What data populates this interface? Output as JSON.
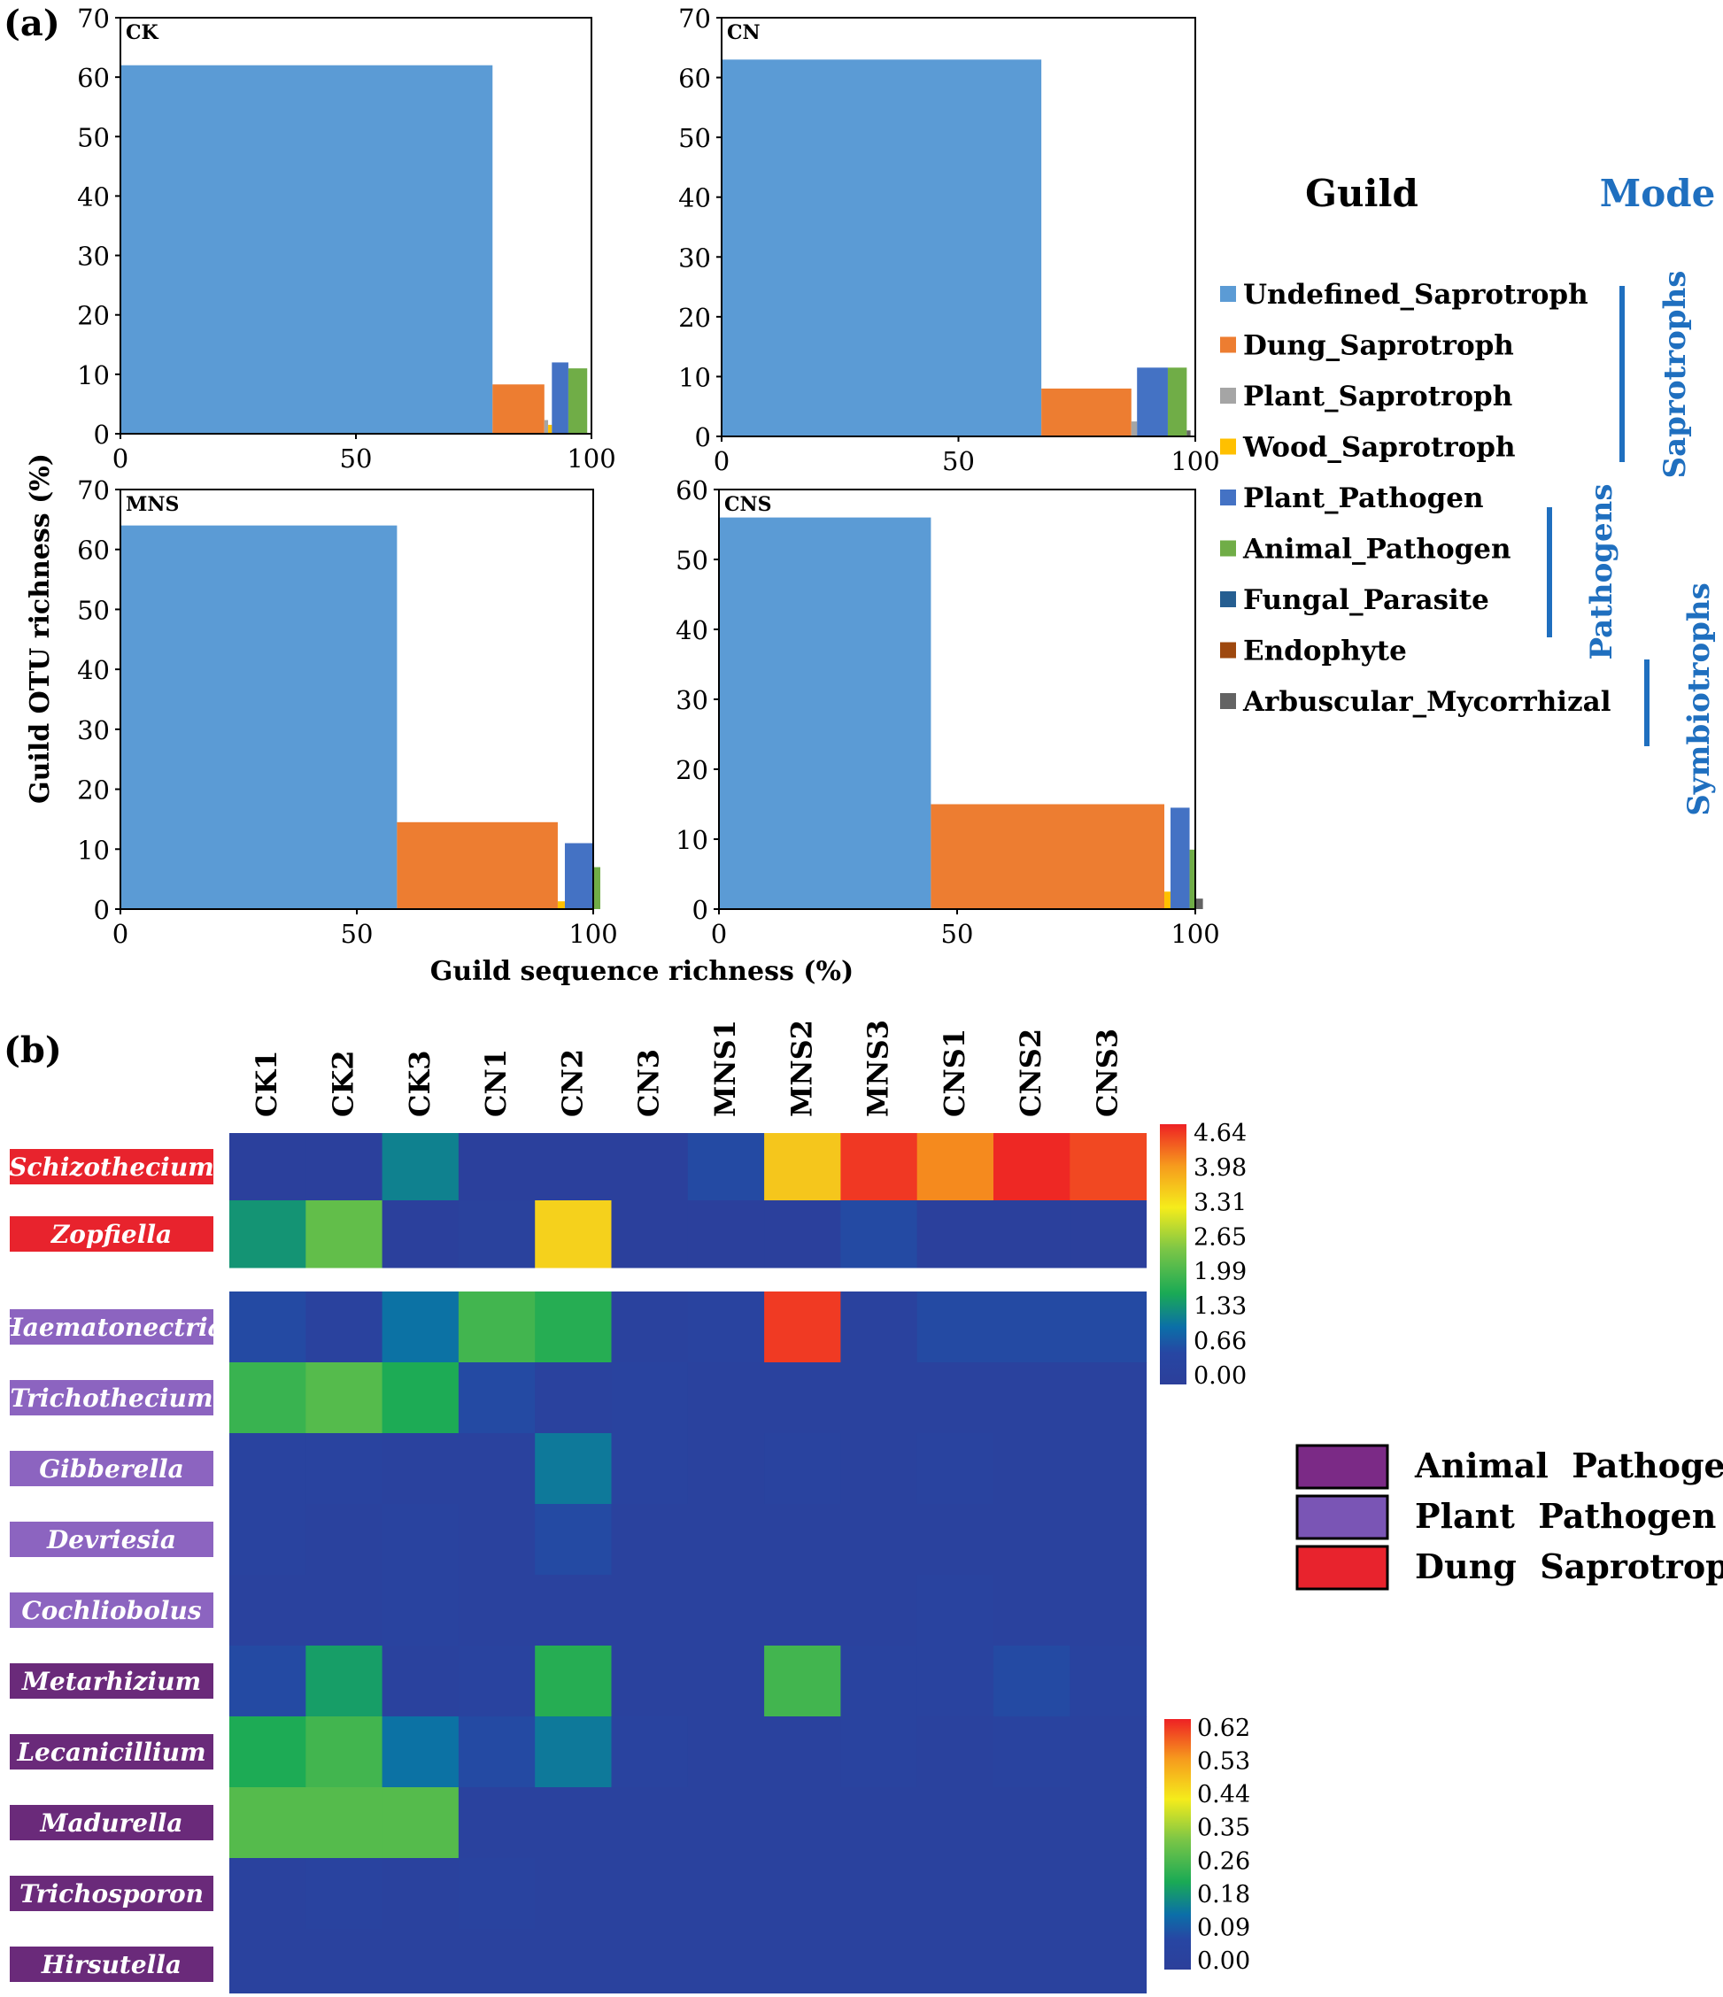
{
  "panel_a": {
    "label": "(a)",
    "ylabel": "Guild OTU richness (%)",
    "xlabel": "Guild sequence richness (%)",
    "legend_title": "Guild",
    "mode_title": "Mode",
    "modes": [
      "Saprotrophs",
      "Pathogens",
      "Symbiotrophs"
    ]
  },
  "panel_b": {
    "label": "(b)",
    "legend": [
      {
        "label": "Animal  Pathogen",
        "color": "#7b2a86"
      },
      {
        "label": "Plant  Pathogen",
        "color": "#7a55b5"
      },
      {
        "label": "Dung  Saprotroph",
        "color": "#e8232d"
      }
    ]
  },
  "chart_data": [
    {
      "type": "bar",
      "title": "CK",
      "xlabel": "Guild sequence richness (%)",
      "ylabel": "Guild OTU richness (%)",
      "xlim": [
        0,
        100
      ],
      "ylim": [
        0,
        70
      ],
      "xticks": [
        0,
        50,
        100
      ],
      "yticks": [
        0,
        10,
        20,
        30,
        40,
        50,
        60,
        70
      ],
      "bars": [
        {
          "guild": "Undefined_Saprotroph",
          "width": 79,
          "height": 62
        },
        {
          "guild": "Dung_Saprotroph",
          "width": 11,
          "height": 8.3
        },
        {
          "guild": "Plant_Saprotroph",
          "width": 0.8,
          "height": 2.3
        },
        {
          "guild": "Wood_Saprotroph",
          "width": 0.8,
          "height": 1.5
        },
        {
          "guild": "Plant_Pathogen",
          "width": 3.5,
          "height": 12
        },
        {
          "guild": "Animal_Pathogen",
          "width": 4,
          "height": 11
        }
      ]
    },
    {
      "type": "bar",
      "title": "CN",
      "xlabel": "Guild sequence richness (%)",
      "ylabel": "Guild OTU richness (%)",
      "xlim": [
        0,
        100
      ],
      "ylim": [
        0,
        70
      ],
      "xticks": [
        0,
        50,
        100
      ],
      "yticks": [
        0,
        10,
        20,
        30,
        40,
        50,
        60,
        70
      ],
      "bars": [
        {
          "guild": "Undefined_Saprotroph",
          "width": 67.5,
          "height": 63
        },
        {
          "guild": "Dung_Saprotroph",
          "width": 19,
          "height": 8
        },
        {
          "guild": "Plant_Saprotroph",
          "width": 1.2,
          "height": 2.5
        },
        {
          "guild": "Plant_Pathogen",
          "width": 6.5,
          "height": 11.5
        },
        {
          "guild": "Animal_Pathogen",
          "width": 4,
          "height": 11.5
        },
        {
          "guild": "Arbuscular_Mycorrhizal",
          "width": 0.8,
          "height": 1
        }
      ]
    },
    {
      "type": "bar",
      "title": "MNS",
      "xlabel": "Guild sequence richness (%)",
      "ylabel": "Guild OTU richness (%)",
      "xlim": [
        0,
        100
      ],
      "ylim": [
        0,
        70
      ],
      "xticks": [
        0,
        50,
        100
      ],
      "yticks": [
        0,
        10,
        20,
        30,
        40,
        50,
        60,
        70
      ],
      "bars": [
        {
          "guild": "Undefined_Saprotroph",
          "width": 58.5,
          "height": 64
        },
        {
          "guild": "Dung_Saprotroph",
          "width": 34,
          "height": 14.5
        },
        {
          "guild": "Wood_Saprotroph",
          "width": 1.5,
          "height": 1.3
        },
        {
          "guild": "Plant_Pathogen",
          "width": 6,
          "height": 11
        },
        {
          "guild": "Animal_Pathogen",
          "width": 1.5,
          "height": 7
        }
      ]
    },
    {
      "type": "bar",
      "title": "CNS",
      "xlabel": "Guild sequence richness (%)",
      "ylabel": "Guild OTU richness (%)",
      "xlim": [
        0,
        100
      ],
      "ylim": [
        0,
        60
      ],
      "xticks": [
        0,
        50,
        100
      ],
      "yticks": [
        0,
        10,
        20,
        30,
        40,
        50,
        60
      ],
      "bars": [
        {
          "guild": "Undefined_Saprotroph",
          "width": 44.5,
          "height": 56
        },
        {
          "guild": "Dung_Saprotroph",
          "width": 49,
          "height": 15
        },
        {
          "guild": "Wood_Saprotroph",
          "width": 1.3,
          "height": 2.5
        },
        {
          "guild": "Plant_Pathogen",
          "width": 4,
          "height": 14.5
        },
        {
          "guild": "Animal_Pathogen",
          "width": 1.3,
          "height": 8.5
        },
        {
          "guild": "Arbuscular_Mycorrhizal",
          "width": 1.5,
          "height": 1.5
        }
      ]
    },
    {
      "type": "heatmap",
      "columns": [
        "CK1",
        "CK2",
        "CK3",
        "CN1",
        "CN2",
        "CN3",
        "MNS1",
        "MNS2",
        "MNS3",
        "CNS1",
        "CNS2",
        "CNS3"
      ],
      "colorbar_ticks": [
        "4.64",
        "3.98",
        "3.31",
        "2.65",
        "1.99",
        "1.33",
        "0.66",
        "0.00"
      ],
      "vmax": 4.64,
      "rows": [
        {
          "name": "Schizothecium",
          "guild": "Dung Saprotroph",
          "values": [
            0.1,
            0.1,
            1.2,
            0.1,
            0.1,
            0.1,
            0.6,
            3.5,
            4.5,
            4.0,
            4.6,
            4.4
          ]
        },
        {
          "name": "Zopfiella",
          "guild": "Dung Saprotroph",
          "values": [
            1.4,
            2.2,
            0.1,
            0.2,
            3.4,
            0.1,
            0.1,
            0.1,
            0.6,
            0.1,
            0.1,
            0.1
          ]
        }
      ]
    },
    {
      "type": "heatmap",
      "columns": [
        "CK1",
        "CK2",
        "CK3",
        "CN1",
        "CN2",
        "CN3",
        "MNS1",
        "MNS2",
        "MNS3",
        "CNS1",
        "CNS2",
        "CNS3"
      ],
      "colorbar_ticks": [
        "0.62",
        "0.53",
        "0.44",
        "0.35",
        "0.26",
        "0.18",
        "0.09",
        "0.00"
      ],
      "vmax": 0.62,
      "rows": [
        {
          "name": "Haematonectria",
          "guild": "Plant Pathogen",
          "values": [
            0.08,
            0.03,
            0.14,
            0.26,
            0.23,
            0.03,
            0.04,
            0.6,
            0.03,
            0.08,
            0.08,
            0.08
          ]
        },
        {
          "name": "Trichothecium",
          "guild": "Plant Pathogen",
          "values": [
            0.25,
            0.28,
            0.22,
            0.08,
            0.03,
            0.04,
            0.03,
            0.03,
            0.03,
            0.03,
            0.03,
            0.03
          ]
        },
        {
          "name": "Gibberella",
          "guild": "Plant Pathogen",
          "values": [
            0.04,
            0.04,
            0.03,
            0.03,
            0.15,
            0.04,
            0.03,
            0.04,
            0.03,
            0.04,
            0.03,
            0.03
          ]
        },
        {
          "name": "Devriesia",
          "guild": "Plant Pathogen",
          "values": [
            0.04,
            0.03,
            0.04,
            0.03,
            0.08,
            0.03,
            0.03,
            0.03,
            0.03,
            0.03,
            0.03,
            0.03
          ]
        },
        {
          "name": "Cochliobolus",
          "guild": "Plant Pathogen",
          "values": [
            0.03,
            0.03,
            0.04,
            0.03,
            0.03,
            0.03,
            0.03,
            0.03,
            0.03,
            0.04,
            0.03,
            0.03
          ]
        },
        {
          "name": "Metarhizium",
          "guild": "Animal Pathogen",
          "values": [
            0.08,
            0.2,
            0.03,
            0.04,
            0.23,
            0.03,
            0.03,
            0.26,
            0.04,
            0.04,
            0.08,
            0.04
          ]
        },
        {
          "name": "Lecanicillium",
          "guild": "Animal Pathogen",
          "values": [
            0.22,
            0.26,
            0.14,
            0.08,
            0.15,
            0.04,
            0.03,
            0.03,
            0.04,
            0.03,
            0.04,
            0.03
          ]
        },
        {
          "name": "Madurella",
          "guild": "Animal Pathogen",
          "values": [
            0.28,
            0.28,
            0.28,
            0.03,
            0.03,
            0.03,
            0.03,
            0.03,
            0.03,
            0.03,
            0.03,
            0.03
          ]
        },
        {
          "name": "Trichosporon",
          "guild": "Animal Pathogen",
          "values": [
            0.03,
            0.04,
            0.03,
            0.04,
            0.03,
            0.03,
            0.03,
            0.03,
            0.03,
            0.03,
            0.03,
            0.03
          ]
        },
        {
          "name": "Hirsutella",
          "guild": "Animal Pathogen",
          "values": [
            0.03,
            0.03,
            0.03,
            0.03,
            0.03,
            0.03,
            0.03,
            0.03,
            0.03,
            0.03,
            0.03,
            0.03
          ]
        }
      ]
    }
  ],
  "guild_legend": [
    {
      "label": "Undefined_Saprotroph",
      "color": "#5b9bd5"
    },
    {
      "label": "Dung_Saprotroph",
      "color": "#ed7d31"
    },
    {
      "label": "Plant_Saprotroph",
      "color": "#a5a5a5"
    },
    {
      "label": "Wood_Saprotroph",
      "color": "#ffc000"
    },
    {
      "label": "Plant_Pathogen",
      "color": "#4472c4"
    },
    {
      "label": "Animal_Pathogen",
      "color": "#70ad47"
    },
    {
      "label": "Fungal_Parasite",
      "color": "#255e91"
    },
    {
      "label": "Endophyte",
      "color": "#9e480e"
    },
    {
      "label": "Arbuscular_Mycorrhizal",
      "color": "#636363"
    }
  ],
  "mode_color": "#1f6fbf"
}
